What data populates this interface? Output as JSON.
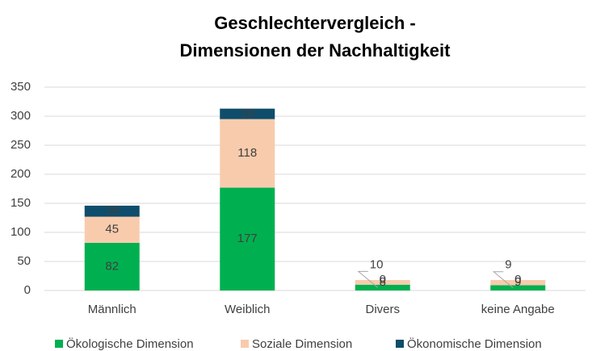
{
  "chart_data": {
    "type": "stacked_bar",
    "title": [
      "Geschlechtervergleich -",
      "Dimensionen der Nachhaltigkeit"
    ],
    "categories": [
      "Männlich",
      "Weiblich",
      "Divers",
      "keine Angabe"
    ],
    "series": [
      {
        "name": "Ökologische Dimension",
        "color": "#00b050",
        "values": [
          82,
          177,
          10,
          9
        ]
      },
      {
        "name": "Soziale Dimension",
        "color": "#f8cbad",
        "values": [
          45,
          118,
          8,
          9
        ]
      },
      {
        "name": "Ökonomische Dimension",
        "color": "#0e4d6b",
        "values": [
          19,
          18,
          0,
          0
        ]
      }
    ],
    "ylim": [
      0,
      350
    ],
    "yticks": [
      0,
      50,
      100,
      150,
      200,
      250,
      300,
      350
    ],
    "grid": true,
    "legend": "bottom"
  }
}
